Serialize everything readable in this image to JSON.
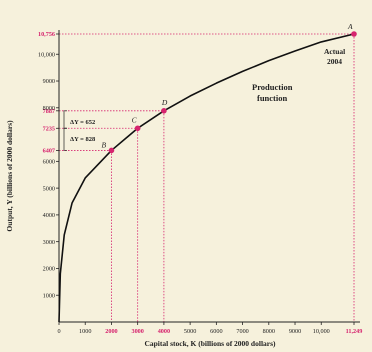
{
  "chart_data": {
    "type": "line",
    "xlabel": "Capital stock, K (billions of 2000 dollars)",
    "ylabel": "Output, Y (billions of 2000 dollars)",
    "xlim": [
      0,
      11249
    ],
    "ylim": [
      0,
      10756
    ],
    "x_ticks": [
      0,
      1000,
      2000,
      3000,
      4000,
      5000,
      6000,
      7000,
      8000,
      9000,
      10000,
      11249
    ],
    "y_ticks": [
      1000,
      2000,
      3000,
      4000,
      5000,
      6000,
      6407,
      7235,
      7887,
      8000,
      9000,
      10000,
      10756
    ],
    "highlighted_x_ticks": [
      2000,
      3000,
      4000,
      11249
    ],
    "highlighted_y_ticks": [
      6407,
      7235,
      7887,
      10756
    ],
    "x_tick_labels": [
      "0",
      "1000",
      "2000",
      "3000",
      "4000",
      "5000",
      "6000",
      "7000",
      "8000",
      "9000",
      "10,000",
      "11,249"
    ],
    "y_tick_labels": [
      "1000",
      "2000",
      "3000",
      "4000",
      "5000",
      "6000",
      "6407",
      "7235",
      "7887",
      "8000",
      "9000",
      "10,000",
      "10,756"
    ],
    "series": [
      {
        "name": "Production function",
        "x": [
          0,
          50,
          200,
          500,
          1000,
          2000,
          3000,
          4000,
          5000,
          6000,
          7000,
          8000,
          9000,
          10000,
          11249
        ],
        "y": [
          0,
          1800,
          3250,
          4450,
          5380,
          6407,
          7235,
          7887,
          8440,
          8920,
          9360,
          9760,
          10120,
          10460,
          10756
        ]
      }
    ],
    "points": [
      {
        "label": "A",
        "x": 11249,
        "y": 10756
      },
      {
        "label": "B",
        "x": 2000,
        "y": 6407
      },
      {
        "label": "C",
        "x": 3000,
        "y": 7235
      },
      {
        "label": "D",
        "x": 4000,
        "y": 7887
      }
    ],
    "annotations": {
      "curve_label_line1": "Production",
      "curve_label_line2": "function",
      "actual_line1": "Actual",
      "actual_line2": "2004",
      "delta_upper": "ΔY = 652",
      "delta_lower": "ΔY = 828"
    },
    "colors": {
      "accent": "#d6246e",
      "curve": "#111111",
      "background": "#f6f1dc",
      "text": "#222222"
    },
    "grid": false,
    "legend": "none"
  }
}
